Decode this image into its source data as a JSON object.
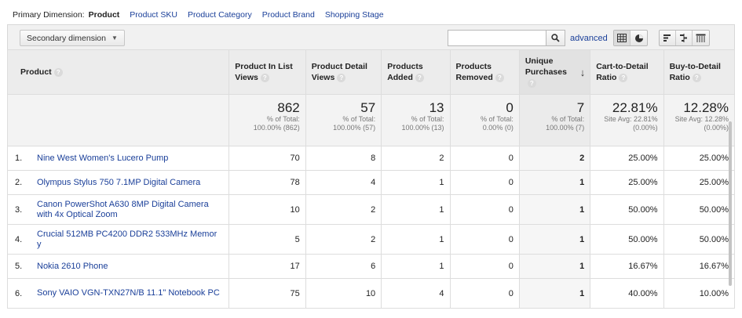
{
  "primary_dimension": {
    "label": "Primary Dimension:",
    "items": [
      {
        "label": "Product",
        "active": true
      },
      {
        "label": "Product SKU",
        "active": false
      },
      {
        "label": "Product Category",
        "active": false
      },
      {
        "label": "Product Brand",
        "active": false
      },
      {
        "label": "Shopping Stage",
        "active": false
      }
    ]
  },
  "toolbar": {
    "secondary_dimension_label": "Secondary dimension",
    "search_value": "",
    "search_placeholder": "",
    "advanced_label": "advanced",
    "view_icons": [
      "table-view-icon",
      "pie-view-icon",
      "performance-view-icon",
      "comparison-view-icon",
      "pivot-view-icon"
    ]
  },
  "table": {
    "columns": [
      {
        "label": "Product",
        "help": "?"
      },
      {
        "label": "Product In List Views",
        "help": "?"
      },
      {
        "label": "Product Detail Views",
        "help": "?"
      },
      {
        "label": "Products Added",
        "help": "?"
      },
      {
        "label": "Products Removed",
        "help": "?"
      },
      {
        "label": "Unique Purchases",
        "help": "?",
        "sorted": true,
        "sort_dir": "desc"
      },
      {
        "label": "Cart-to-Detail Ratio",
        "help": "?"
      },
      {
        "label": "Buy-to-Detail Ratio",
        "help": "?"
      }
    ],
    "totals": [
      {
        "value": "862",
        "sub1": "% of Total:",
        "sub2": "100.00% (862)"
      },
      {
        "value": "57",
        "sub1": "% of Total:",
        "sub2": "100.00% (57)"
      },
      {
        "value": "13",
        "sub1": "% of Total:",
        "sub2": "100.00% (13)"
      },
      {
        "value": "0",
        "sub1": "% of Total:",
        "sub2": "0.00% (0)"
      },
      {
        "value": "7",
        "sub1": "% of Total:",
        "sub2": "100.00% (7)"
      },
      {
        "value": "22.81%",
        "sub1": "Site Avg: 22.81%",
        "sub2": "(0.00%)"
      },
      {
        "value": "12.28%",
        "sub1": "Site Avg: 12.28%",
        "sub2": "(0.00%)"
      }
    ],
    "rows": [
      {
        "num": "1.",
        "product": "Nine West Women's Lucero Pump",
        "values": [
          "70",
          "8",
          "2",
          "0",
          "2",
          "25.00%",
          "25.00%"
        ]
      },
      {
        "num": "2.",
        "product": "Olympus Stylus 750 7.1MP Digital Camera",
        "values": [
          "78",
          "4",
          "1",
          "0",
          "1",
          "25.00%",
          "25.00%"
        ]
      },
      {
        "num": "3.",
        "product": "Canon PowerShot A630 8MP Digital Camera with 4x Optical Zoom",
        "values": [
          "10",
          "2",
          "1",
          "0",
          "1",
          "50.00%",
          "50.00%"
        ]
      },
      {
        "num": "4.",
        "product": "Crucial 512MB PC4200 DDR2 533MHz Memor y",
        "values": [
          "5",
          "2",
          "1",
          "0",
          "1",
          "50.00%",
          "50.00%"
        ]
      },
      {
        "num": "5.",
        "product": "Nokia 2610 Phone",
        "values": [
          "17",
          "6",
          "1",
          "0",
          "1",
          "16.67%",
          "16.67%"
        ]
      },
      {
        "num": "6.",
        "product": "Sony VAIO VGN-TXN27N/B 11.1\" Notebook PC",
        "values": [
          "75",
          "10",
          "4",
          "0",
          "1",
          "40.00%",
          "10.00%"
        ]
      }
    ]
  }
}
